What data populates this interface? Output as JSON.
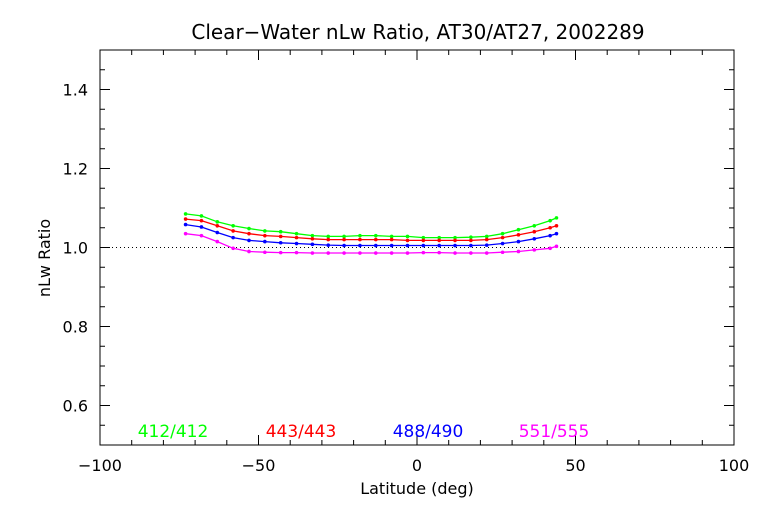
{
  "chart_data": {
    "type": "line",
    "title": "Clear−Water nLw Ratio, AT30/AT27, 2002289",
    "xlabel": "Latitude (deg)",
    "ylabel": "nLw Ratio",
    "xlim": [
      -100,
      100
    ],
    "ylim": [
      0.5,
      1.5
    ],
    "xticks": [
      -100,
      -50,
      0,
      50,
      100
    ],
    "xtick_labels": [
      "−100",
      "−50",
      "0",
      "50",
      "100"
    ],
    "yticks": [
      0.6,
      0.8,
      1.0,
      1.2,
      1.4
    ],
    "ytick_labels": [
      "0.6",
      "0.8",
      "1.0",
      "1.2",
      "1.4"
    ],
    "reference_line": {
      "y": 1.0,
      "style": "dotted"
    },
    "grid": false,
    "legend_placement": "bottom, inside plot",
    "x": [
      -73,
      -68,
      -63,
      -58,
      -53,
      -48,
      -43,
      -38,
      -33,
      -28,
      -23,
      -18,
      -13,
      -8,
      -3,
      2,
      7,
      12,
      17,
      22,
      27,
      32,
      37,
      42,
      44
    ],
    "series": [
      {
        "name": "412/412",
        "color": "#00ff00",
        "values": [
          1.085,
          1.08,
          1.065,
          1.055,
          1.048,
          1.042,
          1.04,
          1.035,
          1.03,
          1.028,
          1.028,
          1.03,
          1.03,
          1.028,
          1.028,
          1.025,
          1.025,
          1.025,
          1.026,
          1.028,
          1.035,
          1.045,
          1.055,
          1.068,
          1.075
        ]
      },
      {
        "name": "443/443",
        "color": "#ff0000",
        "values": [
          1.072,
          1.068,
          1.055,
          1.042,
          1.035,
          1.03,
          1.028,
          1.025,
          1.022,
          1.02,
          1.02,
          1.02,
          1.02,
          1.02,
          1.018,
          1.018,
          1.018,
          1.018,
          1.018,
          1.02,
          1.025,
          1.032,
          1.04,
          1.05,
          1.055
        ]
      },
      {
        "name": "488/490",
        "color": "#0000ff",
        "values": [
          1.058,
          1.052,
          1.038,
          1.025,
          1.018,
          1.015,
          1.012,
          1.01,
          1.008,
          1.006,
          1.005,
          1.005,
          1.005,
          1.005,
          1.005,
          1.005,
          1.005,
          1.005,
          1.005,
          1.006,
          1.01,
          1.015,
          1.022,
          1.03,
          1.035
        ]
      },
      {
        "name": "551/555",
        "color": "#ff00ff",
        "values": [
          1.035,
          1.03,
          1.015,
          0.998,
          0.99,
          0.988,
          0.987,
          0.987,
          0.986,
          0.986,
          0.986,
          0.986,
          0.986,
          0.986,
          0.986,
          0.987,
          0.987,
          0.986,
          0.986,
          0.986,
          0.988,
          0.99,
          0.994,
          0.998,
          1.003
        ]
      }
    ]
  }
}
